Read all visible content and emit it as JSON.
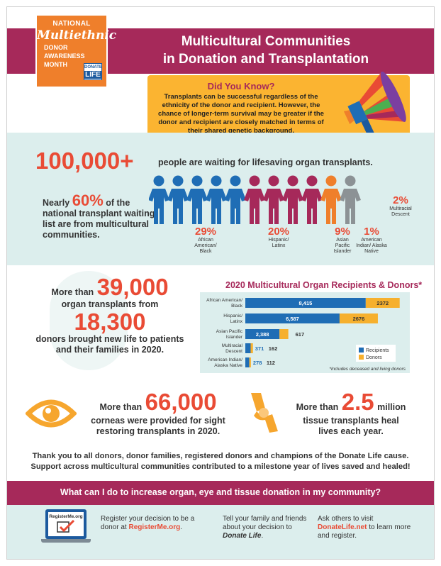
{
  "header": {
    "title_line1": "Multicultural Communities",
    "title_line2": "in Donation and Transplantation",
    "logo": {
      "line1": "NATIONAL",
      "line2": "Multiethnic",
      "line3a": "DONOR",
      "line3b": "AWARENESS",
      "line3c": "MONTH",
      "badge_top": "DONATE",
      "badge_bottom": "LIFE"
    }
  },
  "did_you_know": {
    "title": "Did You Know?",
    "text": "Transplants can be successful regardless of the ethnicity of the donor and recipient. However, the chance of longer-term survival may be greater if the donor and recipient are closely matched in terms of their shared genetic background."
  },
  "waiting": {
    "big_number": "100,000+",
    "big_text": "people are waiting for lifesaving organ transplants.",
    "nearly_pre": "Nearly",
    "nearly_pct": "60%",
    "nearly_post": "of the national transplant waiting list are from multicultural communities.",
    "groups": [
      {
        "pct": "29%",
        "label": "African American/ Black"
      },
      {
        "pct": "20%",
        "label": "Hispanic/ Latinx"
      },
      {
        "pct": "9%",
        "label": "Asian Pacific Islander"
      },
      {
        "pct": "1%",
        "label": "American Indian/ Alaska Native"
      },
      {
        "pct": "2%",
        "label": "Multiracial Descent"
      }
    ],
    "colors": {
      "blue": "#1f6db5",
      "magenta": "#a6295a",
      "orange": "#ef7f2b",
      "gray": "#8c9295",
      "green": "#4caf50"
    }
  },
  "transplants": {
    "pre": "More than",
    "num1": "39,000",
    "mid": "organ transplants from",
    "num2": "18,300",
    "post": "donors brought new life to patients and their families in 2020."
  },
  "chart_data": {
    "type": "bar",
    "title": "2020 Multicultural Organ Recipients & Donors*",
    "categories": [
      "African American/ Black",
      "Hispanic/ Latinx",
      "Asian Pacific Islander",
      "Multiracial Descent",
      "American Indian/ Alaska Native"
    ],
    "series": [
      {
        "name": "Recipients",
        "values": [
          8415,
          6587,
          2388,
          371,
          278
        ],
        "color": "#1f6db5"
      },
      {
        "name": "Donors",
        "values": [
          2372,
          2676,
          617,
          162,
          112
        ],
        "color": "#f6b02e"
      }
    ],
    "value_labels": {
      "Recipients": [
        "8,415",
        "6,587",
        "2,388",
        "371",
        "278"
      ],
      "Donors": [
        "2372",
        "2676",
        "617",
        "162",
        "112"
      ]
    },
    "stacked": true,
    "xlim": [
      0,
      11000
    ],
    "legend": "bottom-right",
    "footnote": "*Includes deceased and living donors"
  },
  "corneas": {
    "pre": "More than",
    "num": "66,000",
    "post": "corneas were provided for sight restoring transplants in 2020."
  },
  "tissue": {
    "pre": "More than",
    "num": "2.5",
    "unit": "million",
    "post": "tissue transplants heal lives each year."
  },
  "thanks": {
    "line1": "Thank you to all donors, donor families, registered donors and champions of the Donate Life cause.",
    "line2": "Support across multicultural communities contributed to a milestone year of lives saved and healed!"
  },
  "question": "What can I do to increase organ, eye and tissue donation in my community?",
  "actions": {
    "laptop_label": "RegisterMe.org",
    "a1_text": "Register your decision to be a donor at",
    "a1_link": "RegisterMe.org",
    "a1_end": ".",
    "a2_text": "Tell your family and friends about your decision to",
    "a2_em": "Donate Life",
    "a2_end": ".",
    "a3_text": "Ask others to visit",
    "a3_link": "DonateLife.net",
    "a3_end": "to learn more and register."
  }
}
